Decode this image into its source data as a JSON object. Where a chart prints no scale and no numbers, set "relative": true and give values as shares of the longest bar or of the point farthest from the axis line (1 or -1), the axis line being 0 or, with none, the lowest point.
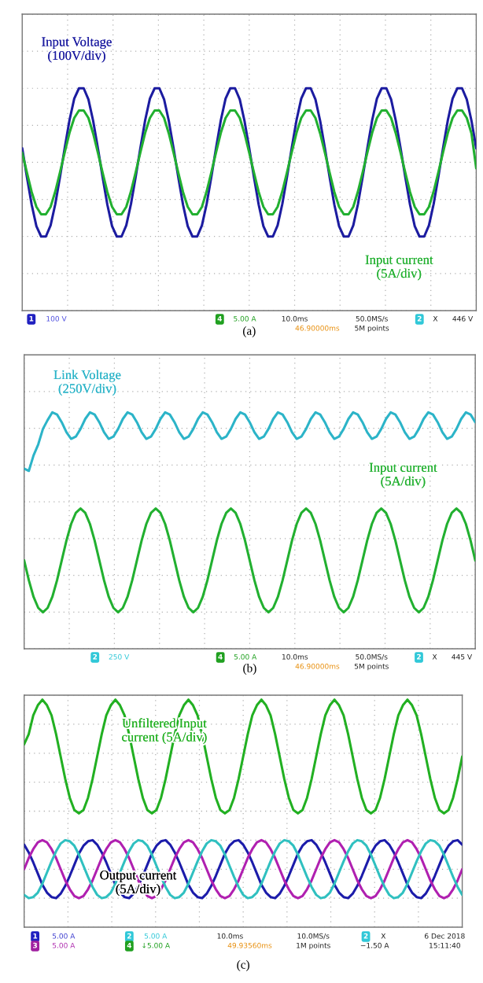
{
  "chart_data": [
    {
      "type": "line",
      "relative": true,
      "grid": true,
      "categories": [
        null,
        null,
        null,
        null,
        null,
        null,
        null,
        null,
        null,
        null,
        null,
        null,
        null,
        null,
        null,
        null,
        null,
        null,
        null,
        null,
        null,
        null,
        null,
        null,
        null,
        null,
        null,
        null,
        null,
        null,
        null,
        null,
        null,
        null,
        null,
        null,
        null,
        null,
        null,
        null,
        null,
        null,
        null,
        null,
        null,
        null,
        null,
        null,
        null,
        null,
        null,
        null,
        null,
        null,
        null,
        null,
        null,
        null,
        null,
        null,
        null,
        null,
        null,
        null,
        null,
        null,
        null,
        null,
        null,
        null,
        null,
        null,
        null,
        null,
        null,
        null,
        null,
        null,
        null,
        null,
        null,
        null,
        null,
        null,
        null,
        null,
        null,
        null,
        null,
        null,
        null,
        null,
        null,
        null,
        null,
        null,
        null
      ],
      "series": [
        {
          "name": "Input Voltage\n(100V/div)",
          "color": "#1c1ca0",
          "values": [
            0.19,
            -0.2,
            -0.57,
            -0.86,
            -1.0,
            -1.0,
            -0.85,
            -0.56,
            -0.19,
            0.2,
            0.57,
            0.86,
            1.0,
            1.0,
            0.85,
            0.56,
            0.19,
            -0.2,
            -0.57,
            -0.86,
            -1.0,
            -1.0,
            -0.85,
            -0.56,
            -0.19,
            0.2,
            0.57,
            0.86,
            1.0,
            1.0,
            0.85,
            0.56,
            0.19,
            -0.2,
            -0.57,
            -0.86,
            -1.0,
            -1.0,
            -0.85,
            -0.56,
            -0.19,
            0.2,
            0.57,
            0.86,
            1.0,
            1.0,
            0.85,
            0.56,
            0.19,
            -0.2,
            -0.57,
            -0.86,
            -1.0,
            -1.0,
            -0.85,
            -0.56,
            -0.19,
            0.2,
            0.57,
            0.86,
            1.0,
            1.0,
            0.85,
            0.56,
            0.19,
            -0.2,
            -0.57,
            -0.86,
            -1.0,
            -1.0,
            -0.85,
            -0.56,
            -0.19,
            0.2,
            0.57,
            0.86,
            1.0,
            1.0,
            0.85,
            0.56,
            0.19,
            -0.2,
            -0.57,
            -0.86,
            -1.0,
            -1.0,
            -0.85,
            -0.56,
            -0.19,
            0.2,
            0.57,
            0.86,
            1.0,
            1.0,
            0.85,
            0.56,
            0.19
          ]
        },
        {
          "name": "Input current\n(5A/div)",
          "color": "#22b030",
          "values": [
            0.13,
            -0.14,
            -0.4,
            -0.6,
            -0.7,
            -0.7,
            -0.6,
            -0.39,
            -0.13,
            0.14,
            0.4,
            0.6,
            0.7,
            0.7,
            0.6,
            0.39,
            0.13,
            -0.14,
            -0.4,
            -0.6,
            -0.7,
            -0.7,
            -0.6,
            -0.39,
            -0.13,
            0.14,
            0.4,
            0.6,
            0.7,
            0.7,
            0.6,
            0.39,
            0.13,
            -0.14,
            -0.4,
            -0.6,
            -0.7,
            -0.7,
            -0.6,
            -0.39,
            -0.13,
            0.14,
            0.4,
            0.6,
            0.7,
            0.7,
            0.6,
            0.39,
            0.13,
            -0.14,
            -0.4,
            -0.6,
            -0.7,
            -0.7,
            -0.6,
            -0.39,
            -0.13,
            0.14,
            0.4,
            0.6,
            0.7,
            0.7,
            0.6,
            0.39,
            0.13,
            -0.14,
            -0.4,
            -0.6,
            -0.7,
            -0.7,
            -0.6,
            -0.39,
            -0.13,
            0.14,
            0.4,
            0.6,
            0.7,
            0.7,
            0.6,
            0.39,
            0.13,
            -0.14,
            -0.4,
            -0.6,
            -0.7,
            -0.7,
            -0.6,
            -0.39,
            -0.13,
            0.14,
            0.4,
            0.6,
            0.7,
            0.7,
            0.6,
            0.39,
            -0.08
          ]
        }
      ],
      "annotations": [
        "1",
        "100 V",
        "4",
        "5.00 A",
        "10.0ms",
        "46.90000ms",
        "50.0MS/s",
        "5M points",
        "2",
        "X",
        "446 V",
        "(a)"
      ]
    },
    {
      "type": "line",
      "relative": true,
      "grid": true,
      "categories": [
        null,
        null,
        null,
        null,
        null,
        null,
        null,
        null,
        null,
        null,
        null,
        null,
        null,
        null,
        null,
        null,
        null,
        null,
        null,
        null,
        null,
        null,
        null,
        null,
        null,
        null,
        null,
        null,
        null,
        null,
        null,
        null,
        null,
        null,
        null,
        null,
        null,
        null,
        null,
        null,
        null,
        null,
        null,
        null,
        null,
        null,
        null,
        null,
        null,
        null,
        null,
        null,
        null,
        null,
        null,
        null,
        null,
        null,
        null,
        null,
        null,
        null,
        null,
        null,
        null,
        null,
        null,
        null,
        null,
        null,
        null,
        null,
        null,
        null,
        null,
        null,
        null,
        null,
        null,
        null,
        null,
        null,
        null,
        null,
        null,
        null,
        null,
        null,
        null,
        null,
        null,
        null,
        null,
        null,
        null,
        null,
        null
      ],
      "series": [
        {
          "name": "Link Voltage\n(250V/div)",
          "color": "#2cb4c8",
          "values": [
            0.3,
            0.28,
            0.42,
            0.52,
            0.66,
            0.74,
            0.81,
            0.79,
            0.72,
            0.63,
            0.57,
            0.59,
            0.66,
            0.75,
            0.81,
            0.79,
            0.72,
            0.63,
            0.57,
            0.59,
            0.66,
            0.75,
            0.81,
            0.79,
            0.72,
            0.63,
            0.57,
            0.59,
            0.66,
            0.75,
            0.81,
            0.79,
            0.72,
            0.63,
            0.57,
            0.59,
            0.66,
            0.75,
            0.81,
            0.79,
            0.72,
            0.63,
            0.57,
            0.59,
            0.66,
            0.75,
            0.81,
            0.79,
            0.72,
            0.63,
            0.57,
            0.59,
            0.66,
            0.75,
            0.81,
            0.79,
            0.72,
            0.63,
            0.57,
            0.59,
            0.66,
            0.75,
            0.81,
            0.79,
            0.72,
            0.63,
            0.57,
            0.59,
            0.66,
            0.75,
            0.81,
            0.79,
            0.72,
            0.63,
            0.57,
            0.59,
            0.66,
            0.75,
            0.81,
            0.79,
            0.72,
            0.63,
            0.57,
            0.59,
            0.66,
            0.75,
            0.81,
            0.79,
            0.72,
            0.63,
            0.57,
            0.59,
            0.66,
            0.75,
            0.81,
            0.79,
            0.72
          ]
        },
        {
          "name": "Input current\n(5A/div)",
          "color": "#22b030",
          "values": [
            -0.53,
            -0.71,
            -0.86,
            -0.96,
            -1.0,
            -0.96,
            -0.86,
            -0.71,
            -0.53,
            -0.35,
            -0.2,
            -0.1,
            -0.06,
            -0.1,
            -0.2,
            -0.35,
            -0.53,
            -0.71,
            -0.86,
            -0.96,
            -1.0,
            -0.96,
            -0.86,
            -0.71,
            -0.53,
            -0.35,
            -0.2,
            -0.1,
            -0.06,
            -0.1,
            -0.2,
            -0.35,
            -0.53,
            -0.71,
            -0.86,
            -0.96,
            -1.0,
            -0.96,
            -0.86,
            -0.71,
            -0.53,
            -0.35,
            -0.2,
            -0.1,
            -0.06,
            -0.1,
            -0.2,
            -0.35,
            -0.53,
            -0.71,
            -0.86,
            -0.96,
            -1.0,
            -0.96,
            -0.86,
            -0.71,
            -0.53,
            -0.35,
            -0.2,
            -0.1,
            -0.06,
            -0.1,
            -0.2,
            -0.35,
            -0.53,
            -0.71,
            -0.86,
            -0.96,
            -1.0,
            -0.96,
            -0.86,
            -0.71,
            -0.53,
            -0.35,
            -0.2,
            -0.1,
            -0.06,
            -0.1,
            -0.2,
            -0.35,
            -0.53,
            -0.71,
            -0.86,
            -0.96,
            -1.0,
            -0.96,
            -0.86,
            -0.71,
            -0.53,
            -0.35,
            -0.2,
            -0.1,
            -0.06,
            -0.1,
            -0.2,
            -0.35,
            -0.53
          ]
        }
      ],
      "annotations": [
        "2",
        "250 V",
        "4",
        "5.00 A",
        "10.0ms",
        "46.90000ms",
        "50.0MS/s",
        "5M points",
        "2",
        "X",
        "445 V",
        "(b)"
      ]
    },
    {
      "type": "line",
      "relative": true,
      "grid": true,
      "categories": [
        null,
        null,
        null,
        null,
        null,
        null,
        null,
        null,
        null,
        null,
        null,
        null,
        null,
        null,
        null,
        null,
        null,
        null,
        null,
        null,
        null,
        null,
        null,
        null,
        null,
        null,
        null,
        null,
        null,
        null,
        null,
        null,
        null,
        null,
        null,
        null,
        null,
        null,
        null,
        null,
        null,
        null,
        null,
        null,
        null,
        null,
        null,
        null,
        null,
        null,
        null,
        null,
        null,
        null,
        null,
        null,
        null,
        null,
        null,
        null,
        null,
        null,
        null,
        null,
        null,
        null,
        null,
        null,
        null,
        null,
        null,
        null,
        null,
        null,
        null,
        null,
        null,
        null,
        null,
        null,
        null,
        null,
        null,
        null,
        null,
        null,
        null,
        null,
        null,
        null,
        null,
        null,
        null,
        null,
        null,
        null,
        null
      ],
      "series": [
        {
          "name": "Unfiltered Input\ncurrent (5A/div)",
          "color": "#22b022",
          "values": [
            0.6,
            0.69,
            0.86,
            0.95,
            1.0,
            0.95,
            0.86,
            0.69,
            0.49,
            0.29,
            0.12,
            0.01,
            -0.02,
            0.01,
            0.12,
            0.29,
            0.49,
            0.69,
            0.86,
            0.95,
            1.0,
            0.95,
            0.86,
            0.69,
            0.49,
            0.29,
            0.12,
            0.01,
            -0.02,
            0.01,
            0.12,
            0.29,
            0.49,
            0.69,
            0.86,
            0.95,
            1.0,
            0.95,
            0.86,
            0.69,
            0.49,
            0.29,
            0.12,
            0.01,
            -0.02,
            0.01,
            0.12,
            0.29,
            0.49,
            0.69,
            0.86,
            0.95,
            1.0,
            0.95,
            0.86,
            0.69,
            0.49,
            0.29,
            0.12,
            0.01,
            -0.02,
            0.01,
            0.12,
            0.29,
            0.49,
            0.69,
            0.86,
            0.95,
            1.0,
            0.95,
            0.86,
            0.69,
            0.49,
            0.29,
            0.12,
            0.01,
            -0.02,
            0.01,
            0.12,
            0.29,
            0.49,
            0.69,
            0.86,
            0.95,
            1.0,
            0.95,
            0.86,
            0.69,
            0.49,
            0.29,
            0.12,
            0.01,
            -0.02,
            0.01,
            0.12,
            0.29,
            0.49
          ]
        },
        {
          "color": "#1c1caa",
          "values": [
            -0.3,
            -0.37,
            -0.46,
            -0.56,
            -0.66,
            -0.73,
            -0.77,
            -0.78,
            -0.74,
            -0.67,
            -0.58,
            -0.48,
            -0.38,
            -0.31,
            -0.27,
            -0.26,
            -0.3,
            -0.37,
            -0.46,
            -0.56,
            -0.66,
            -0.73,
            -0.77,
            -0.78,
            -0.74,
            -0.67,
            -0.58,
            -0.48,
            -0.38,
            -0.31,
            -0.27,
            -0.26,
            -0.3,
            -0.37,
            -0.46,
            -0.56,
            -0.66,
            -0.73,
            -0.77,
            -0.78,
            -0.74,
            -0.67,
            -0.58,
            -0.48,
            -0.38,
            -0.31,
            -0.27,
            -0.26,
            -0.3,
            -0.37,
            -0.46,
            -0.56,
            -0.66,
            -0.73,
            -0.77,
            -0.78,
            -0.74,
            -0.67,
            -0.58,
            -0.48,
            -0.38,
            -0.31,
            -0.27,
            -0.26,
            -0.3,
            -0.37,
            -0.46,
            -0.56,
            -0.66,
            -0.73,
            -0.77,
            -0.78,
            -0.74,
            -0.67,
            -0.58,
            -0.48,
            -0.38,
            -0.31,
            -0.27,
            -0.26,
            -0.3,
            -0.37,
            -0.46,
            -0.56,
            -0.66,
            -0.73,
            -0.77,
            -0.78,
            -0.74,
            -0.67,
            -0.58,
            -0.48,
            -0.38,
            -0.31,
            -0.27,
            -0.26,
            -0.3
          ]
        },
        {
          "color": "#b020b0",
          "values": [
            -0.52,
            -0.42,
            -0.34,
            -0.28,
            -0.26,
            -0.28,
            -0.34,
            -0.42,
            -0.52,
            -0.62,
            -0.7,
            -0.76,
            -0.78,
            -0.76,
            -0.7,
            -0.62,
            -0.52,
            -0.42,
            -0.34,
            -0.28,
            -0.26,
            -0.28,
            -0.34,
            -0.42,
            -0.52,
            -0.62,
            -0.7,
            -0.76,
            -0.78,
            -0.76,
            -0.7,
            -0.62,
            -0.52,
            -0.42,
            -0.34,
            -0.28,
            -0.26,
            -0.28,
            -0.34,
            -0.42,
            -0.52,
            -0.62,
            -0.7,
            -0.76,
            -0.78,
            -0.76,
            -0.7,
            -0.62,
            -0.52,
            -0.42,
            -0.34,
            -0.28,
            -0.26,
            -0.28,
            -0.34,
            -0.42,
            -0.52,
            -0.62,
            -0.7,
            -0.76,
            -0.78,
            -0.76,
            -0.7,
            -0.62,
            -0.52,
            -0.42,
            -0.34,
            -0.28,
            -0.26,
            -0.28,
            -0.34,
            -0.42,
            -0.52,
            -0.62,
            -0.7,
            -0.76,
            -0.78,
            -0.76,
            -0.7,
            -0.62,
            -0.52,
            -0.42,
            -0.34,
            -0.28,
            -0.26,
            -0.28,
            -0.34,
            -0.42,
            -0.52,
            -0.62,
            -0.7,
            -0.76,
            -0.78,
            -0.76,
            -0.7,
            -0.62,
            -0.52
          ]
        },
        {
          "color": "#30c0c0",
          "values": [
            -0.75,
            -0.78,
            -0.77,
            -0.73,
            -0.65,
            -0.55,
            -0.45,
            -0.36,
            -0.29,
            -0.26,
            -0.27,
            -0.31,
            -0.39,
            -0.49,
            -0.59,
            -0.68,
            -0.75,
            -0.78,
            -0.77,
            -0.73,
            -0.65,
            -0.55,
            -0.45,
            -0.36,
            -0.29,
            -0.26,
            -0.27,
            -0.31,
            -0.39,
            -0.49,
            -0.59,
            -0.68,
            -0.75,
            -0.78,
            -0.77,
            -0.73,
            -0.65,
            -0.55,
            -0.45,
            -0.36,
            -0.29,
            -0.26,
            -0.27,
            -0.31,
            -0.39,
            -0.49,
            -0.59,
            -0.68,
            -0.75,
            -0.78,
            -0.77,
            -0.73,
            -0.65,
            -0.55,
            -0.45,
            -0.36,
            -0.29,
            -0.26,
            -0.27,
            -0.31,
            -0.39,
            -0.49,
            -0.59,
            -0.68,
            -0.75,
            -0.78,
            -0.77,
            -0.73,
            -0.65,
            -0.55,
            -0.45,
            -0.36,
            -0.29,
            -0.26,
            -0.27,
            -0.31,
            -0.39,
            -0.49,
            -0.59,
            -0.68,
            -0.75,
            -0.78,
            -0.77,
            -0.73,
            -0.65,
            -0.55,
            -0.45,
            -0.36,
            -0.29,
            -0.26,
            -0.27,
            -0.31,
            -0.39,
            -0.49,
            -0.59,
            -0.68,
            -0.75
          ]
        }
      ],
      "annotations": [
        "Output current\n(5A/div)",
        "1",
        "5.00 A",
        "3",
        "5.00 A",
        "2",
        "5.00 A",
        "4",
        "↓5.00 A",
        "10.0ms",
        "49.93560ms",
        "10.0MS/s",
        "1M points",
        "2",
        "X",
        "−1.50 A",
        "6 Dec 2018",
        "15:11:40",
        "(c)"
      ]
    }
  ]
}
